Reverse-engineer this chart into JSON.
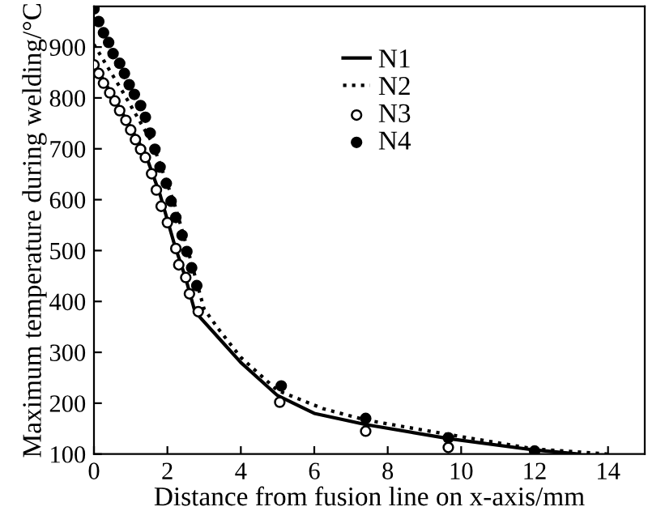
{
  "chart_data": {
    "type": "line",
    "xlabel": "Distance from fusion line on x-axis/mm",
    "ylabel": "Maximum temperature during welding/°C",
    "xlim": [
      0,
      15
    ],
    "ylim": [
      100,
      980
    ],
    "xticks": [
      0,
      2,
      4,
      6,
      8,
      10,
      12,
      14
    ],
    "yticks": [
      100,
      200,
      300,
      400,
      500,
      600,
      700,
      800,
      900
    ],
    "grid": false,
    "legend": "top right",
    "series": [
      {
        "name": "N1",
        "line_style": "solid",
        "marker": "none",
        "color": "#000000",
        "x": [
          0,
          0.7,
          1.4,
          1.8,
          2.2,
          2.5,
          2.75,
          3.5,
          4,
          5,
          6,
          7.4,
          9.7,
          12,
          13.2
        ],
        "values": [
          868,
          780,
          690,
          610,
          510,
          445,
          380,
          320,
          280,
          215,
          180,
          158,
          130,
          108,
          100
        ]
      },
      {
        "name": "N2",
        "line_style": "dotted",
        "marker": "none",
        "color": "#000000",
        "x": [
          0,
          0.8,
          1.6,
          2.2,
          2.6,
          3.0,
          3.4,
          4,
          5,
          6.25,
          7.4,
          9.7,
          12,
          14
        ],
        "values": [
          905,
          810,
          710,
          590,
          490,
          385,
          345,
          290,
          225,
          189,
          167,
          138,
          110,
          100
        ]
      },
      {
        "name": "N3",
        "type": "scatter",
        "marker": "circle",
        "color": "#ffffff",
        "x": [
          0,
          0.13,
          0.26,
          0.43,
          0.57,
          0.7,
          0.87,
          1.0,
          1.13,
          1.27,
          1.4,
          1.57,
          1.7,
          1.83,
          2.0,
          2.23,
          2.31,
          2.5,
          2.6,
          2.84,
          5.06,
          7.4,
          9.65
        ],
        "values": [
          865,
          848,
          829,
          810,
          794,
          775,
          756,
          737,
          718,
          699,
          683,
          651,
          619,
          587,
          555,
          504,
          472,
          447,
          415,
          380,
          202,
          145,
          113
        ]
      },
      {
        "name": "N4",
        "type": "scatter",
        "marker": "circle",
        "color": "#000000",
        "x": [
          0,
          0.13,
          0.26,
          0.4,
          0.52,
          0.7,
          0.83,
          0.96,
          1.1,
          1.27,
          1.4,
          1.53,
          1.66,
          1.8,
          1.97,
          2.1,
          2.23,
          2.4,
          2.53,
          2.66,
          2.8,
          5.1,
          7.4,
          9.65,
          12
        ],
        "values": [
          975,
          950,
          928,
          909,
          887,
          868,
          848,
          826,
          807,
          785,
          762,
          731,
          699,
          664,
          632,
          597,
          565,
          530,
          498,
          466,
          431,
          234,
          170,
          132,
          106
        ]
      }
    ]
  }
}
